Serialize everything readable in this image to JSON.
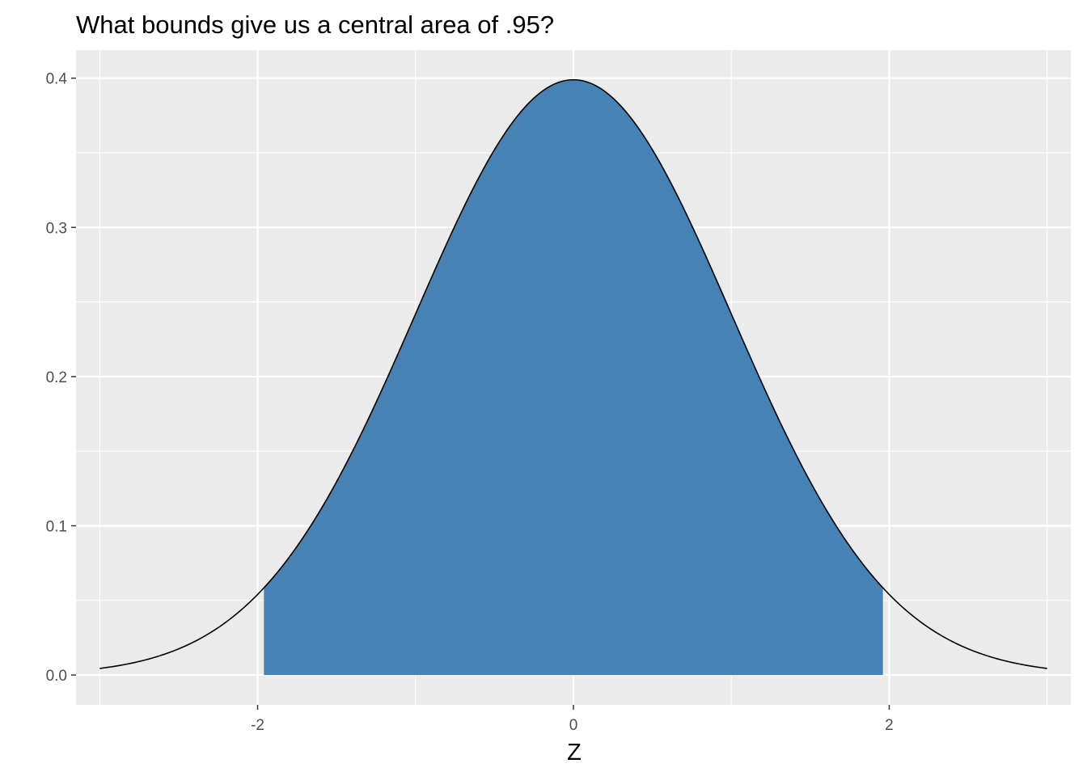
{
  "chart_data": {
    "type": "area",
    "title": "What bounds give us a central area of .95?",
    "xlabel": "Z",
    "ylabel": "",
    "xlim": [
      -3.15,
      3.15
    ],
    "ylim": [
      -0.02,
      0.4188
    ],
    "x_ticks": [
      -2,
      0,
      2
    ],
    "x_tick_labels": [
      "-2",
      "0",
      "2"
    ],
    "y_ticks": [
      0.0,
      0.1,
      0.2,
      0.3,
      0.4
    ],
    "y_tick_labels": [
      "0.0",
      "0.1",
      "0.2",
      "0.3",
      "0.4"
    ],
    "grid": true,
    "legend": "none",
    "curve": {
      "distribution": "standard normal density",
      "x_range": [
        -3,
        3
      ],
      "x": [
        -3.0,
        -2.5,
        -2.0,
        -1.96,
        -1.5,
        -1.0,
        -0.5,
        0.0,
        0.5,
        1.0,
        1.5,
        1.96,
        2.0,
        2.5,
        3.0
      ],
      "y": [
        0.0044,
        0.0175,
        0.054,
        0.0584,
        0.1295,
        0.242,
        0.3521,
        0.3989,
        0.3521,
        0.242,
        0.1295,
        0.0584,
        0.054,
        0.0175,
        0.0044
      ]
    },
    "shaded_region": {
      "x_from": -1.96,
      "x_to": 1.96,
      "area": 0.95
    },
    "colors": {
      "panel_background": "#ebebeb",
      "grid": "#ffffff",
      "fill": "#4682b4",
      "line": "#000000",
      "tick_text": "#4d4d4d"
    }
  }
}
